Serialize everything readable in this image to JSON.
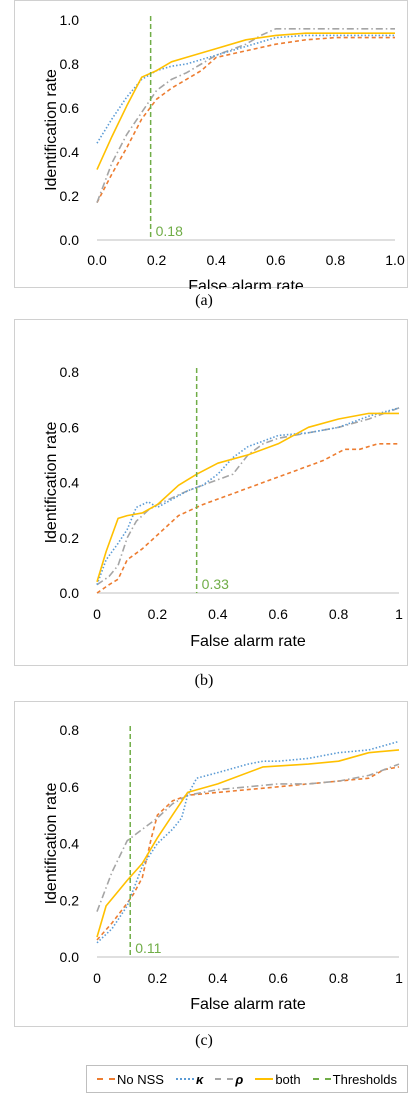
{
  "colors": {
    "no_nss": "#ed7d31",
    "kappa": "#5b9bd5",
    "rho": "#a5a5a5",
    "both": "#ffc000",
    "threshold": "#70ad47"
  },
  "legend": [
    {
      "key": "no_nss",
      "label": "No NSS",
      "style": "dashed"
    },
    {
      "key": "kappa",
      "label": "κ",
      "style": "dotted"
    },
    {
      "key": "rho",
      "label": "ρ",
      "style": "dashdot"
    },
    {
      "key": "both",
      "label": "both",
      "style": "solid"
    },
    {
      "key": "threshold",
      "label": "Thresholds",
      "style": "dashed"
    }
  ],
  "chart_data": [
    {
      "type": "line",
      "caption": "(a)",
      "xlabel": "False alarm rate",
      "ylabel": "Identification rate",
      "xlim": [
        0,
        1
      ],
      "ylim": [
        0,
        1
      ],
      "xticks": [
        0,
        0.2,
        0.4,
        0.6,
        0.8,
        1
      ],
      "xtick_labels": [
        "0.0",
        "0.2",
        "0.4",
        "0.6",
        "0.8",
        "1.0"
      ],
      "yticks": [
        0,
        0.2,
        0.4,
        0.6,
        0.8,
        1
      ],
      "ytick_labels": [
        "0.0",
        "0.2",
        "0.4",
        "0.6",
        "0.8",
        "1.0"
      ],
      "threshold": 0.18,
      "threshold_label": "0.18",
      "series": [
        {
          "key": "no_nss",
          "x": [
            0,
            0.05,
            0.1,
            0.15,
            0.2,
            0.25,
            0.3,
            0.35,
            0.4,
            0.5,
            0.6,
            0.7,
            0.8,
            0.9,
            1
          ],
          "y": [
            0.17,
            0.3,
            0.42,
            0.55,
            0.64,
            0.69,
            0.73,
            0.77,
            0.83,
            0.86,
            0.89,
            0.91,
            0.92,
            0.92,
            0.92
          ]
        },
        {
          "key": "kappa",
          "x": [
            0,
            0.05,
            0.1,
            0.15,
            0.2,
            0.25,
            0.3,
            0.35,
            0.4,
            0.5,
            0.6,
            0.7,
            0.8,
            0.9,
            1
          ],
          "y": [
            0.44,
            0.55,
            0.65,
            0.73,
            0.77,
            0.79,
            0.8,
            0.82,
            0.84,
            0.88,
            0.92,
            0.93,
            0.93,
            0.93,
            0.93
          ]
        },
        {
          "key": "rho",
          "x": [
            0,
            0.05,
            0.1,
            0.15,
            0.2,
            0.25,
            0.3,
            0.35,
            0.4,
            0.5,
            0.55,
            0.6,
            0.7,
            0.8,
            0.9,
            1
          ],
          "y": [
            0.17,
            0.35,
            0.48,
            0.58,
            0.68,
            0.73,
            0.76,
            0.8,
            0.84,
            0.89,
            0.93,
            0.96,
            0.96,
            0.96,
            0.96,
            0.96
          ]
        },
        {
          "key": "both",
          "x": [
            0,
            0.05,
            0.1,
            0.15,
            0.2,
            0.25,
            0.3,
            0.4,
            0.5,
            0.6,
            0.7,
            0.8,
            0.9,
            1
          ],
          "y": [
            0.32,
            0.47,
            0.61,
            0.74,
            0.77,
            0.81,
            0.83,
            0.87,
            0.91,
            0.93,
            0.94,
            0.94,
            0.94,
            0.94
          ]
        }
      ]
    },
    {
      "type": "line",
      "caption": "(b)",
      "xlabel": "False alarm rate",
      "ylabel": "Identification rate",
      "xlim": [
        0,
        1
      ],
      "ylim": [
        0,
        0.8
      ],
      "xticks": [
        0,
        0.2,
        0.4,
        0.6,
        0.8,
        1
      ],
      "xtick_labels": [
        "0",
        "0.2",
        "0.4",
        "0.6",
        "0.8",
        "1"
      ],
      "yticks": [
        0,
        0.2,
        0.4,
        0.6,
        0.8
      ],
      "ytick_labels": [
        "0.0",
        "0.2",
        "0.4",
        "0.6",
        "0.8"
      ],
      "threshold": 0.33,
      "threshold_label": "0.33",
      "series": [
        {
          "key": "no_nss",
          "x": [
            0,
            0.04,
            0.07,
            0.1,
            0.15,
            0.2,
            0.27,
            0.35,
            0.45,
            0.55,
            0.65,
            0.75,
            0.82,
            0.87,
            0.93,
            1
          ],
          "y": [
            0,
            0.03,
            0.05,
            0.12,
            0.16,
            0.21,
            0.28,
            0.32,
            0.36,
            0.4,
            0.44,
            0.48,
            0.52,
            0.52,
            0.54,
            0.54
          ]
        },
        {
          "key": "kappa",
          "x": [
            0,
            0.03,
            0.07,
            0.1,
            0.13,
            0.17,
            0.2,
            0.25,
            0.3,
            0.35,
            0.4,
            0.45,
            0.5,
            0.55,
            0.6,
            0.7,
            0.8,
            0.9,
            1
          ],
          "y": [
            0.03,
            0.12,
            0.18,
            0.23,
            0.31,
            0.33,
            0.31,
            0.34,
            0.37,
            0.39,
            0.43,
            0.49,
            0.53,
            0.55,
            0.57,
            0.58,
            0.6,
            0.64,
            0.67
          ]
        },
        {
          "key": "rho",
          "x": [
            0,
            0.04,
            0.07,
            0.1,
            0.13,
            0.17,
            0.2,
            0.3,
            0.4,
            0.45,
            0.5,
            0.55,
            0.6,
            0.7,
            0.8,
            0.9,
            1
          ],
          "y": [
            0.03,
            0.06,
            0.1,
            0.2,
            0.26,
            0.3,
            0.32,
            0.37,
            0.41,
            0.43,
            0.5,
            0.54,
            0.56,
            0.58,
            0.6,
            0.63,
            0.67
          ]
        },
        {
          "key": "both",
          "x": [
            0,
            0.03,
            0.07,
            0.1,
            0.15,
            0.2,
            0.27,
            0.33,
            0.4,
            0.5,
            0.6,
            0.7,
            0.8,
            0.9,
            1
          ],
          "y": [
            0.04,
            0.15,
            0.27,
            0.28,
            0.29,
            0.32,
            0.39,
            0.43,
            0.47,
            0.5,
            0.54,
            0.6,
            0.63,
            0.65,
            0.65
          ]
        }
      ]
    },
    {
      "type": "line",
      "caption": "(c)",
      "xlabel": "False alarm rate",
      "ylabel": "Identification rate",
      "xlim": [
        0,
        1
      ],
      "ylim": [
        0,
        0.8
      ],
      "xticks": [
        0,
        0.2,
        0.4,
        0.6,
        0.8,
        1
      ],
      "xtick_labels": [
        "0",
        "0.2",
        "0.4",
        "0.6",
        "0.8",
        "1"
      ],
      "yticks": [
        0,
        0.2,
        0.4,
        0.6,
        0.8
      ],
      "ytick_labels": [
        "0.0",
        "0.2",
        "0.4",
        "0.6",
        "0.8"
      ],
      "threshold": 0.11,
      "threshold_label": "0.11",
      "series": [
        {
          "key": "no_nss",
          "x": [
            0,
            0.05,
            0.1,
            0.12,
            0.15,
            0.18,
            0.2,
            0.25,
            0.3,
            0.4,
            0.5,
            0.6,
            0.7,
            0.8,
            0.9,
            0.95,
            1
          ],
          "y": [
            0.06,
            0.12,
            0.19,
            0.22,
            0.28,
            0.42,
            0.5,
            0.55,
            0.57,
            0.58,
            0.59,
            0.6,
            0.61,
            0.62,
            0.63,
            0.66,
            0.67
          ]
        },
        {
          "key": "kappa",
          "x": [
            0,
            0.05,
            0.1,
            0.15,
            0.2,
            0.25,
            0.28,
            0.3,
            0.33,
            0.4,
            0.5,
            0.55,
            0.6,
            0.7,
            0.8,
            0.9,
            1
          ],
          "y": [
            0.05,
            0.1,
            0.18,
            0.32,
            0.4,
            0.45,
            0.49,
            0.57,
            0.63,
            0.65,
            0.68,
            0.69,
            0.69,
            0.7,
            0.72,
            0.73,
            0.76
          ]
        },
        {
          "key": "rho",
          "x": [
            0,
            0.05,
            0.1,
            0.15,
            0.2,
            0.25,
            0.3,
            0.4,
            0.5,
            0.6,
            0.7,
            0.8,
            0.9,
            1
          ],
          "y": [
            0.16,
            0.3,
            0.41,
            0.45,
            0.49,
            0.54,
            0.57,
            0.59,
            0.6,
            0.61,
            0.61,
            0.62,
            0.64,
            0.68
          ]
        },
        {
          "key": "both",
          "x": [
            0,
            0.03,
            0.1,
            0.15,
            0.2,
            0.25,
            0.3,
            0.4,
            0.55,
            0.7,
            0.8,
            0.9,
            1
          ],
          "y": [
            0.07,
            0.18,
            0.27,
            0.33,
            0.42,
            0.5,
            0.58,
            0.61,
            0.67,
            0.68,
            0.69,
            0.72,
            0.73
          ]
        }
      ]
    }
  ]
}
